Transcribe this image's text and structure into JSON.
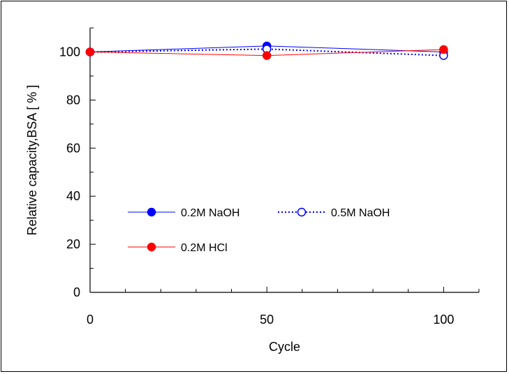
{
  "chart_data": {
    "type": "line",
    "xlabel": "Cycle",
    "ylabel": "Relative capacity,BSA [ % ]",
    "xlim": [
      0,
      110
    ],
    "ylim": [
      0,
      110
    ],
    "x_ticks": [
      0,
      50,
      100
    ],
    "x_minor_step": 10,
    "y_ticks": [
      0,
      20,
      40,
      60,
      80,
      100
    ],
    "y_minor_step": 10,
    "grid": false,
    "legend_position": "lower-left inside plot, two rows",
    "series": [
      {
        "name": "0.2M NaOH",
        "x": [
          0,
          50,
          100
        ],
        "y": [
          100,
          102.5,
          100
        ],
        "color": "#0000ff",
        "line_style": "solid",
        "marker": "filled-circle"
      },
      {
        "name": "0.5M NaOH",
        "x": [
          0,
          50,
          100
        ],
        "y": [
          100,
          101.2,
          98.5
        ],
        "color": "#0000ff",
        "line_style": "dotted",
        "marker": "open-circle"
      },
      {
        "name": "0.2M HCl",
        "x": [
          0,
          50,
          100
        ],
        "y": [
          100,
          98.5,
          101
        ],
        "color": "#ff0000",
        "line_style": "solid",
        "marker": "filled-circle"
      }
    ]
  }
}
